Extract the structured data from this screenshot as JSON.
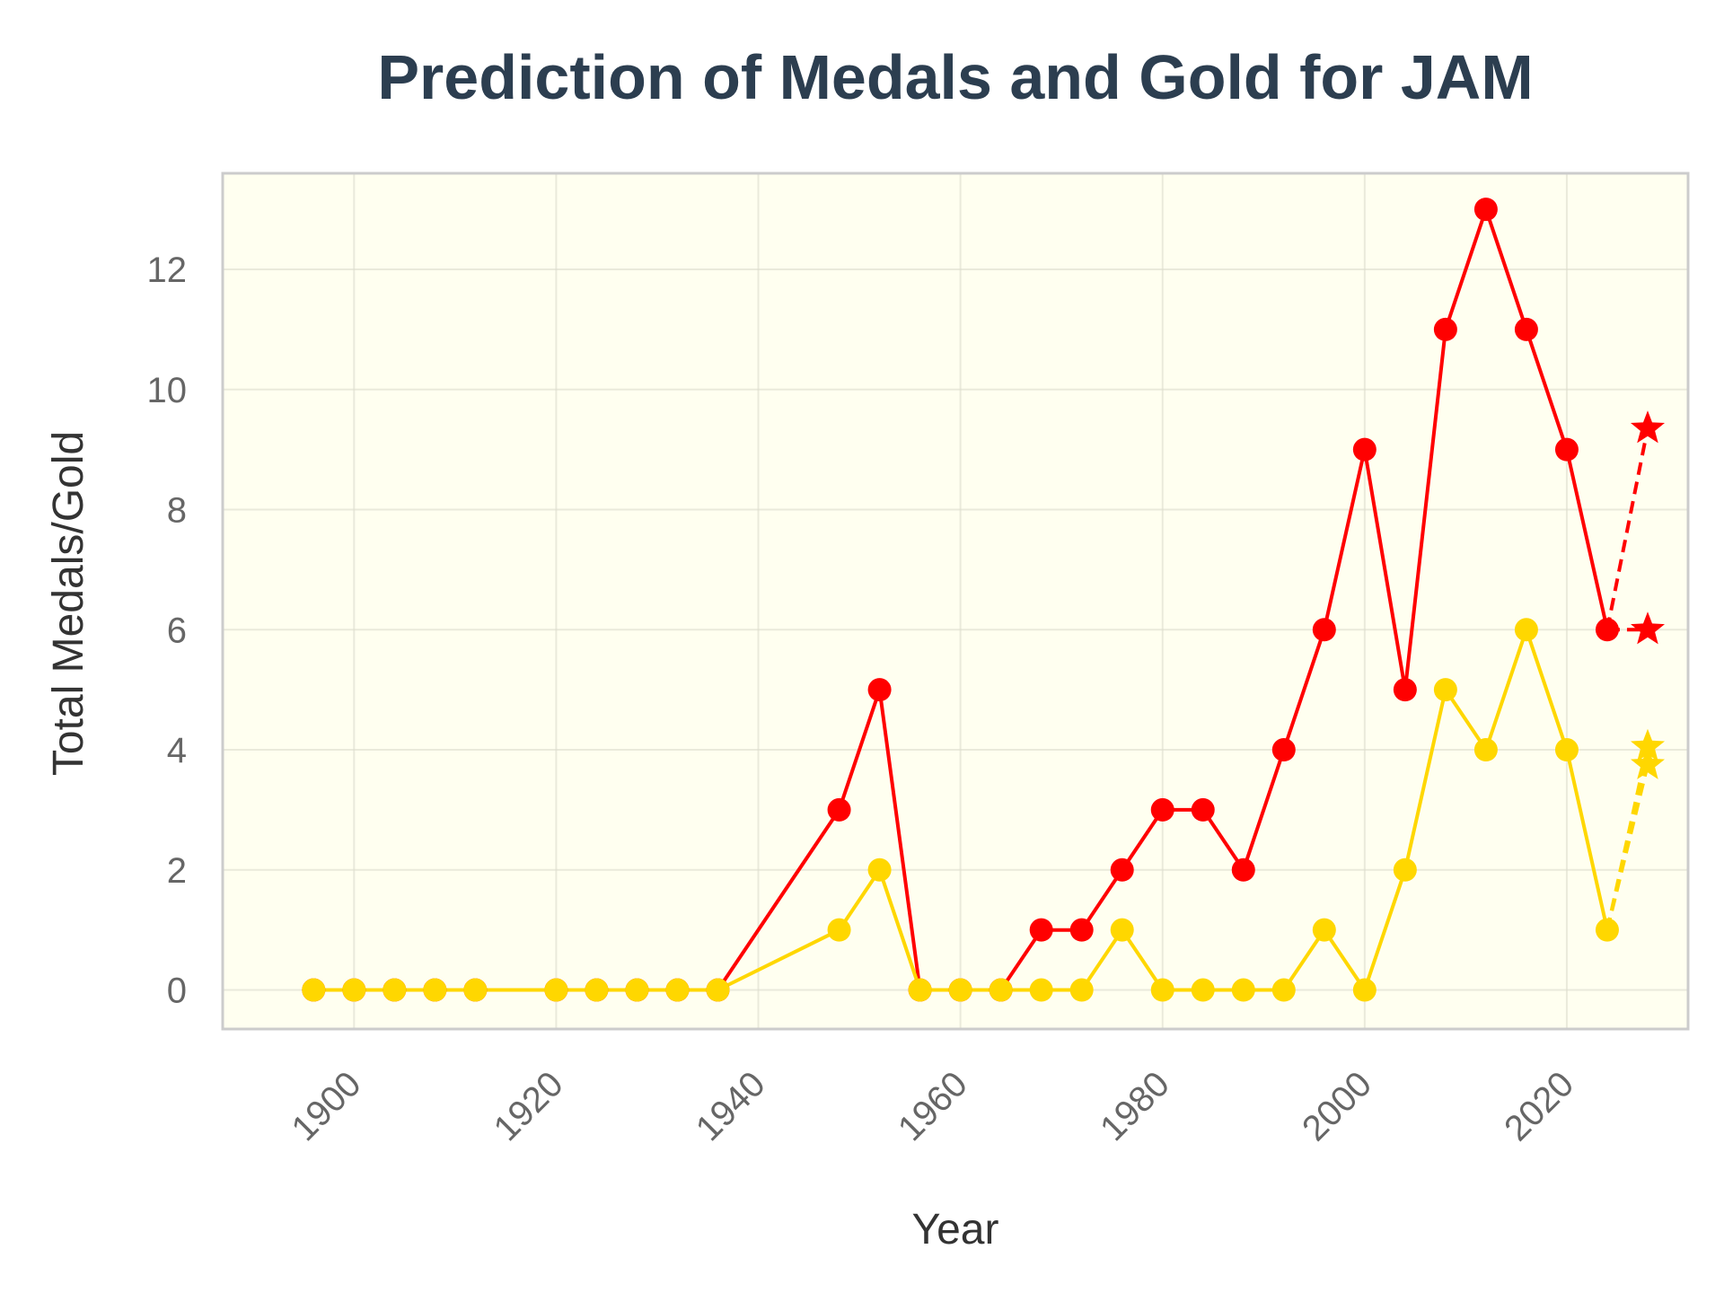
{
  "chart_data": {
    "type": "line",
    "title": "Prediction of Medals and Gold for JAM",
    "xlabel": "Year",
    "ylabel": "Total Medals/Gold",
    "xlim": [
      1887,
      2032
    ],
    "ylim": [
      -0.65,
      13.6
    ],
    "xticks": [
      1900,
      1920,
      1940,
      1960,
      1980,
      2000,
      2020
    ],
    "yticks": [
      0,
      2,
      4,
      6,
      8,
      10,
      12
    ],
    "grid": true,
    "legend": "none",
    "colors": {
      "medals": "#ff0000",
      "gold": "#ffd700",
      "background": "#fffff0",
      "grid": "#dcdccd",
      "frame": "#cccccc"
    },
    "series": [
      {
        "key": "medals",
        "color": "#ff0000",
        "marker": "circle",
        "points": [
          [
            1896,
            0
          ],
          [
            1900,
            0
          ],
          [
            1904,
            0
          ],
          [
            1908,
            0
          ],
          [
            1912,
            0
          ],
          [
            1920,
            0
          ],
          [
            1924,
            0
          ],
          [
            1928,
            0
          ],
          [
            1932,
            0
          ],
          [
            1936,
            0
          ],
          [
            1948,
            3
          ],
          [
            1952,
            5
          ],
          [
            1956,
            0
          ],
          [
            1960,
            0
          ],
          [
            1964,
            0
          ],
          [
            1968,
            1
          ],
          [
            1972,
            1
          ],
          [
            1976,
            2
          ],
          [
            1980,
            3
          ],
          [
            1984,
            3
          ],
          [
            1988,
            2
          ],
          [
            1992,
            4
          ],
          [
            1996,
            6
          ],
          [
            2000,
            9
          ],
          [
            2004,
            5
          ],
          [
            2008,
            11
          ],
          [
            2012,
            13
          ],
          [
            2016,
            11
          ],
          [
            2020,
            9
          ],
          [
            2024,
            6
          ]
        ]
      },
      {
        "key": "gold",
        "color": "#ffd700",
        "marker": "circle",
        "points": [
          [
            1896,
            0
          ],
          [
            1900,
            0
          ],
          [
            1904,
            0
          ],
          [
            1908,
            0
          ],
          [
            1912,
            0
          ],
          [
            1920,
            0
          ],
          [
            1924,
            0
          ],
          [
            1928,
            0
          ],
          [
            1932,
            0
          ],
          [
            1936,
            0
          ],
          [
            1948,
            1
          ],
          [
            1952,
            2
          ],
          [
            1956,
            0
          ],
          [
            1960,
            0
          ],
          [
            1964,
            0
          ],
          [
            1968,
            0
          ],
          [
            1972,
            0
          ],
          [
            1976,
            1
          ],
          [
            1980,
            0
          ],
          [
            1984,
            0
          ],
          [
            1988,
            0
          ],
          [
            1992,
            0
          ],
          [
            1996,
            1
          ],
          [
            2000,
            0
          ],
          [
            2004,
            2
          ],
          [
            2008,
            5
          ],
          [
            2012,
            4
          ],
          [
            2016,
            6
          ],
          [
            2020,
            4
          ],
          [
            2024,
            1
          ]
        ]
      }
    ],
    "predictions": [
      {
        "key": "medals",
        "color": "#ff0000",
        "from": [
          2024,
          6
        ],
        "points": [
          [
            2028,
            9.35
          ],
          [
            2028,
            6.0
          ]
        ]
      },
      {
        "key": "gold",
        "color": "#ffd700",
        "from": [
          2024,
          1
        ],
        "points": [
          [
            2028,
            4.05
          ],
          [
            2028,
            3.75
          ]
        ]
      }
    ]
  }
}
